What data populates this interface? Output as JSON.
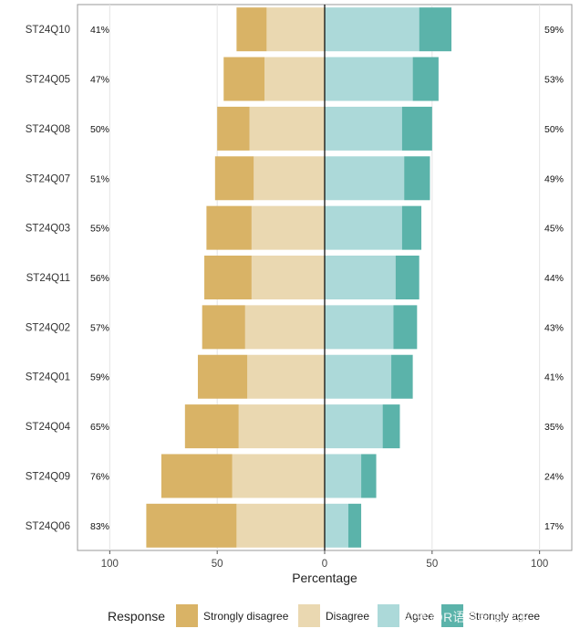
{
  "chart_data": {
    "type": "bar",
    "orientation": "horizontal-diverging",
    "xlabel": "Percentage",
    "xlim": [
      -115,
      115
    ],
    "x_ticks": [
      -100,
      -50,
      0,
      50,
      100
    ],
    "x_tick_labels": [
      "100",
      "50",
      "0",
      "50",
      "100"
    ],
    "grid": true,
    "categories": [
      "ST24Q10",
      "ST24Q05",
      "ST24Q08",
      "ST24Q07",
      "ST24Q03",
      "ST24Q11",
      "ST24Q02",
      "ST24Q01",
      "ST24Q04",
      "ST24Q09",
      "ST24Q06"
    ],
    "series": [
      {
        "name": "Strongly disagree",
        "side": "negative",
        "color": "#d9b366",
        "values": [
          14,
          19,
          15,
          18,
          21,
          22,
          20,
          23,
          25,
          33,
          42
        ]
      },
      {
        "name": "Disagree",
        "side": "negative",
        "color": "#ead8b1",
        "values": [
          27,
          28,
          35,
          33,
          34,
          34,
          37,
          36,
          40,
          43,
          41
        ]
      },
      {
        "name": "Agree",
        "side": "positive",
        "color": "#acd9d9",
        "values": [
          44,
          41,
          36,
          37,
          36,
          33,
          32,
          31,
          27,
          17,
          11
        ]
      },
      {
        "name": "Strongly agree",
        "side": "positive",
        "color": "#5bb3aa",
        "values": [
          15,
          12,
          14,
          12,
          9,
          11,
          11,
          10,
          8,
          7,
          6
        ]
      }
    ],
    "left_percent_labels": [
      "41%",
      "47%",
      "50%",
      "51%",
      "55%",
      "56%",
      "57%",
      "59%",
      "65%",
      "76%",
      "83%"
    ],
    "right_percent_labels": [
      "59%",
      "53%",
      "50%",
      "49%",
      "45%",
      "44%",
      "43%",
      "41%",
      "35%",
      "24%",
      "17%"
    ],
    "legend": {
      "title": "Response",
      "position": "bottom",
      "entries": [
        "Strongly disagree",
        "Disagree",
        "Agree",
        "Strongly agree"
      ]
    }
  },
  "watermark": "知乎 @R语言与医学生"
}
